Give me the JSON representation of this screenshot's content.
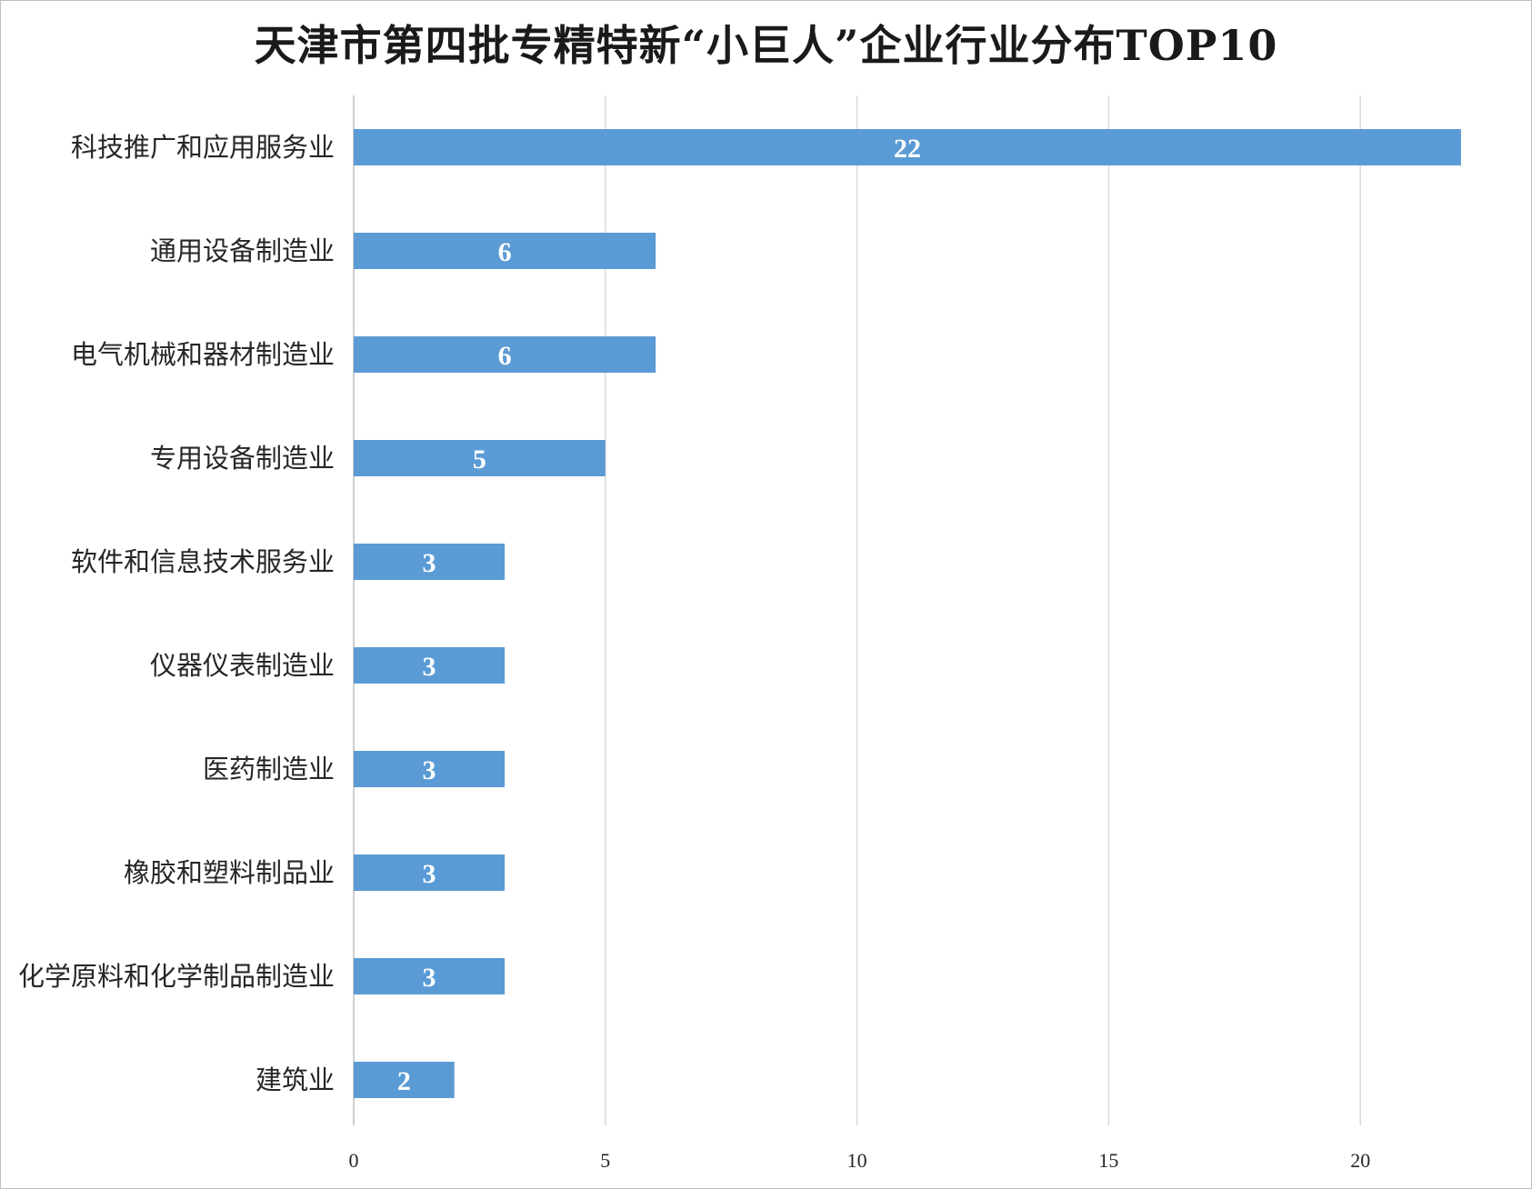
{
  "chart_data": {
    "type": "bar",
    "orientation": "horizontal",
    "title": "天津市第四批专精特新“小巨人”企业行业分布TOP10",
    "xlabel": "",
    "ylabel": "",
    "categories": [
      "科技推广和应用服务业",
      "通用设备制造业",
      "电气机械和器材制造业",
      "专用设备制造业",
      "软件和信息技术服务业",
      "仪器仪表制造业",
      "医药制造业",
      "橡胶和塑料制品业",
      "化学原料和化学制品制造业",
      "建筑业"
    ],
    "values": [
      22,
      6,
      6,
      5,
      3,
      3,
      3,
      3,
      3,
      2
    ],
    "xlim": [
      0,
      22
    ],
    "xticks": [
      0,
      5,
      10,
      15,
      20
    ],
    "data_labels": true,
    "grid": "vertical",
    "legend": "none",
    "bar_color": "#5b9bd5"
  }
}
